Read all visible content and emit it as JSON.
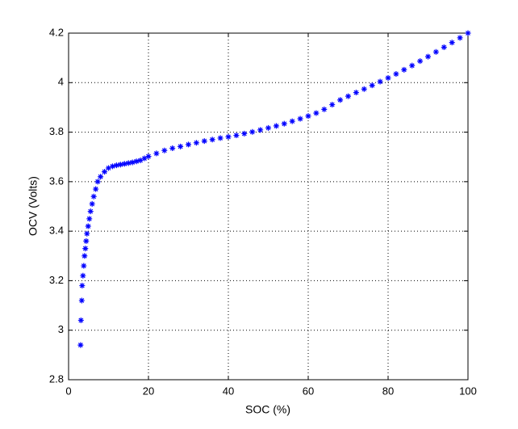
{
  "chart_data": {
    "type": "scatter",
    "x_label": "SOC (%)",
    "y_label": "OCV (Volts)",
    "x": [
      3.0,
      3.1,
      3.3,
      3.4,
      3.6,
      3.8,
      4.0,
      4.2,
      4.4,
      4.6,
      4.9,
      5.2,
      5.5,
      5.9,
      6.3,
      6.8,
      7.3,
      8,
      9,
      10,
      11,
      12,
      13,
      14,
      15,
      16,
      17,
      18,
      19,
      20,
      22,
      24,
      26,
      28,
      30,
      32,
      34,
      36,
      38,
      40,
      42,
      44,
      46,
      48,
      50,
      52,
      54,
      56,
      58,
      60,
      62,
      64,
      66,
      68,
      70,
      72,
      74,
      76,
      78,
      80,
      82,
      84,
      86,
      88,
      90,
      92,
      94,
      96,
      98,
      100
    ],
    "values": [
      2.94,
      3.04,
      3.12,
      3.18,
      3.22,
      3.26,
      3.3,
      3.33,
      3.36,
      3.39,
      3.42,
      3.45,
      3.48,
      3.51,
      3.54,
      3.57,
      3.6,
      3.62,
      3.64,
      3.655,
      3.662,
      3.666,
      3.669,
      3.672,
      3.675,
      3.678,
      3.682,
      3.686,
      3.694,
      3.702,
      3.714,
      3.726,
      3.735,
      3.742,
      3.75,
      3.757,
      3.764,
      3.77,
      3.776,
      3.781,
      3.787,
      3.794,
      3.801,
      3.809,
      3.817,
      3.825,
      3.834,
      3.844,
      3.854,
      3.865,
      3.877,
      3.892,
      3.911,
      3.93,
      3.945,
      3.96,
      3.974,
      3.989,
      4.004,
      4.019,
      4.035,
      4.052,
      4.069,
      4.087,
      4.105,
      4.124,
      4.143,
      4.162,
      4.181,
      4.2
    ],
    "color": "#0000ff",
    "xlim": [
      0,
      100
    ],
    "xticks": [
      0,
      20,
      40,
      60,
      80,
      100
    ],
    "ylim": [
      2.8,
      4.2
    ],
    "yticks": [
      2.8,
      3,
      3.2,
      3.4,
      3.6,
      3.8,
      4,
      4.2
    ],
    "grid": true
  }
}
